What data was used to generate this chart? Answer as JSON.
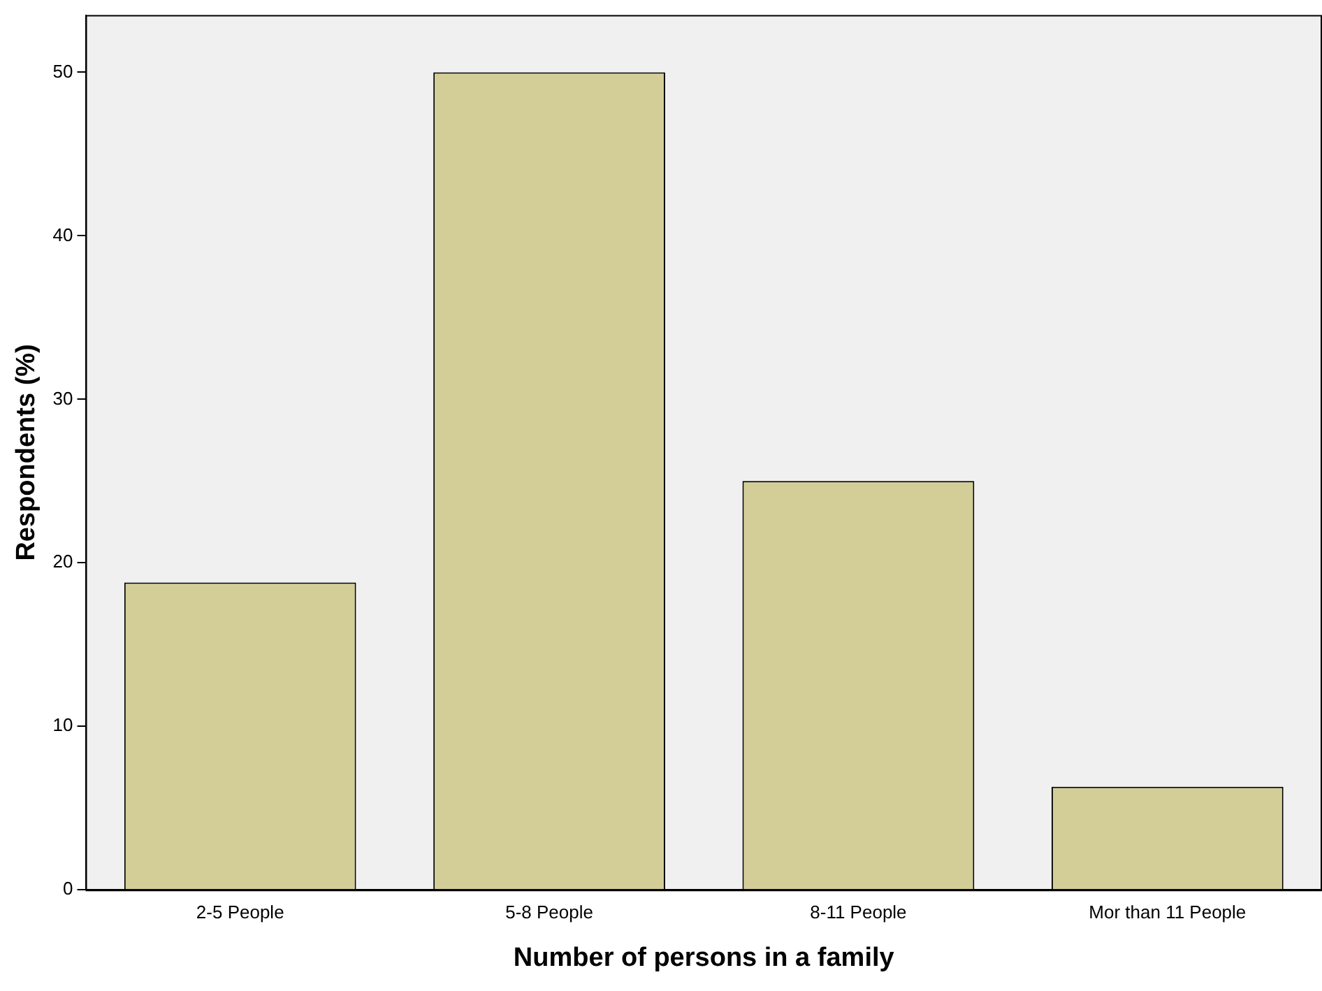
{
  "chart_data": {
    "type": "bar",
    "xlabel": "Number of persons in a family",
    "ylabel": "Respondents (%)",
    "categories": [
      "2-5 People",
      "5-8 People",
      "8-11 People",
      "Mor than 11 People"
    ],
    "values": [
      18.8,
      50,
      25,
      6.3
    ],
    "color": "#d3ce97",
    "ylim": [
      0,
      53.5
    ],
    "yticks": [
      0,
      10,
      20,
      30,
      40,
      50
    ],
    "grid": false,
    "legend": false
  }
}
